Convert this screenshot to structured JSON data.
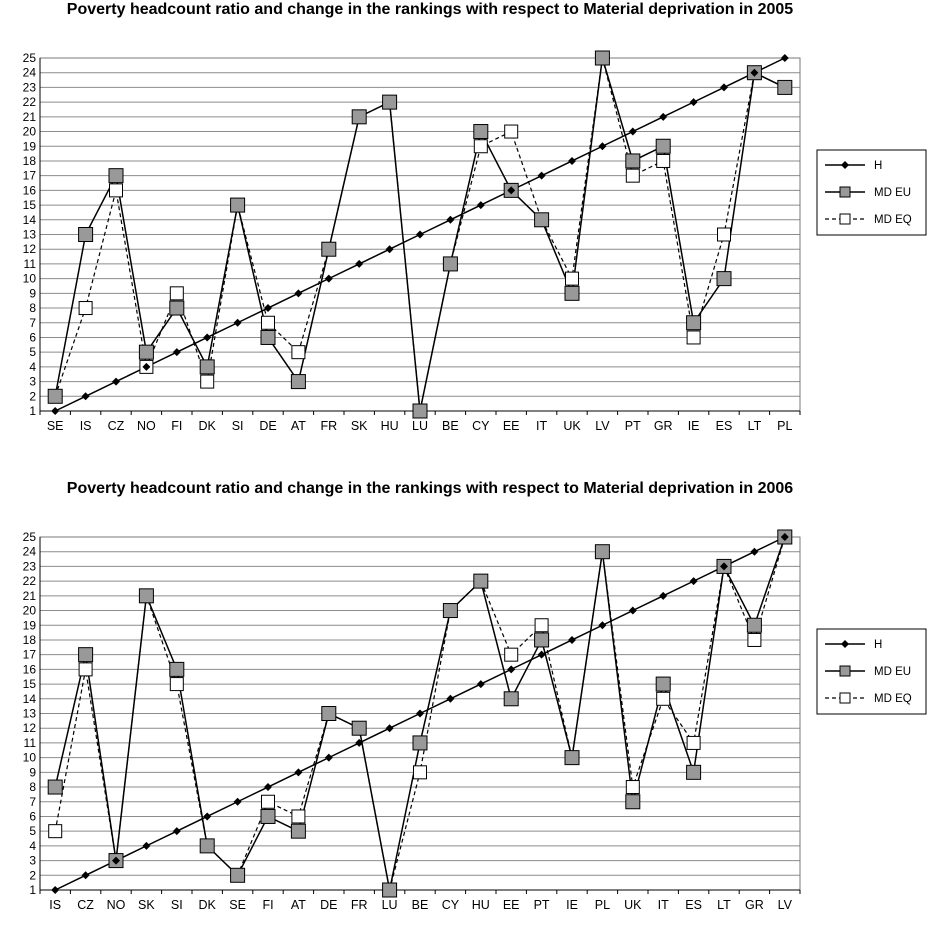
{
  "chart_data": [
    {
      "type": "line",
      "title": "Poverty headcount ratio and change in the rankings with respect to Material deprivation in 2005",
      "categories": [
        "SE",
        "IS",
        "CZ",
        "NO",
        "FI",
        "DK",
        "SI",
        "DE",
        "AT",
        "FR",
        "SK",
        "HU",
        "LU",
        "BE",
        "CY",
        "EE",
        "IT",
        "UK",
        "LV",
        "PT",
        "GR",
        "IE",
        "ES",
        "LT",
        "PL"
      ],
      "ylim": [
        1,
        25
      ],
      "y_ticks": [
        1,
        2,
        3,
        4,
        5,
        6,
        7,
        8,
        9,
        10,
        11,
        12,
        13,
        14,
        15,
        16,
        17,
        18,
        19,
        20,
        21,
        22,
        23,
        24,
        25
      ],
      "grid": true,
      "legend_position": "right",
      "series": [
        {
          "name": "H",
          "marker": "diamond",
          "line": "solid",
          "color": "#000000",
          "values": [
            1,
            2,
            3,
            4,
            5,
            6,
            7,
            8,
            9,
            10,
            11,
            12,
            13,
            14,
            15,
            16,
            17,
            18,
            19,
            20,
            21,
            22,
            23,
            24,
            25
          ]
        },
        {
          "name": "MD EU",
          "marker": "square-filled",
          "line": "solid",
          "color": "#000000",
          "fill": "#999999",
          "values": [
            2,
            13,
            17,
            5,
            8,
            4,
            15,
            6,
            3,
            12,
            21,
            22,
            1,
            11,
            20,
            16,
            14,
            9,
            25,
            18,
            19,
            7,
            10,
            24,
            23
          ]
        },
        {
          "name": "MD EQ",
          "marker": "square-open",
          "line": "dashed",
          "color": "#000000",
          "fill": "#ffffff",
          "values": [
            2,
            8,
            16,
            4,
            9,
            3,
            15,
            7,
            5,
            12,
            21,
            22,
            1,
            11,
            19,
            20,
            14,
            10,
            25,
            17,
            18,
            6,
            13,
            24,
            23
          ]
        }
      ]
    },
    {
      "type": "line",
      "title": "Poverty headcount ratio and change in the rankings with respect to Material deprivation in 2006",
      "categories": [
        "IS",
        "CZ",
        "NO",
        "SK",
        "SI",
        "DK",
        "SE",
        "FI",
        "AT",
        "DE",
        "FR",
        "LU",
        "BE",
        "CY",
        "HU",
        "EE",
        "PT",
        "IE",
        "PL",
        "UK",
        "IT",
        "ES",
        "LT",
        "GR",
        "LV"
      ],
      "ylim": [
        1,
        25
      ],
      "y_ticks": [
        1,
        2,
        3,
        4,
        5,
        6,
        7,
        8,
        9,
        10,
        11,
        12,
        13,
        14,
        15,
        16,
        17,
        18,
        19,
        20,
        21,
        22,
        23,
        24,
        25
      ],
      "grid": true,
      "legend_position": "right",
      "series": [
        {
          "name": "H",
          "marker": "diamond",
          "line": "solid",
          "color": "#000000",
          "values": [
            1,
            2,
            3,
            4,
            5,
            6,
            7,
            8,
            9,
            10,
            11,
            12,
            13,
            14,
            15,
            16,
            17,
            18,
            19,
            20,
            21,
            22,
            23,
            24,
            25
          ]
        },
        {
          "name": "MD EU",
          "marker": "square-filled",
          "line": "solid",
          "color": "#000000",
          "fill": "#999999",
          "values": [
            8,
            17,
            3,
            21,
            16,
            4,
            2,
            6,
            5,
            13,
            12,
            1,
            11,
            20,
            22,
            14,
            18,
            10,
            24,
            7,
            15,
            9,
            23,
            19,
            25
          ]
        },
        {
          "name": "MD EQ",
          "marker": "square-open",
          "line": "dashed",
          "color": "#000000",
          "fill": "#ffffff",
          "values": [
            5,
            16,
            3,
            21,
            15,
            4,
            2,
            7,
            6,
            13,
            12,
            1,
            9,
            20,
            22,
            17,
            19,
            10,
            24,
            8,
            14,
            11,
            23,
            18,
            25
          ]
        }
      ]
    }
  ]
}
